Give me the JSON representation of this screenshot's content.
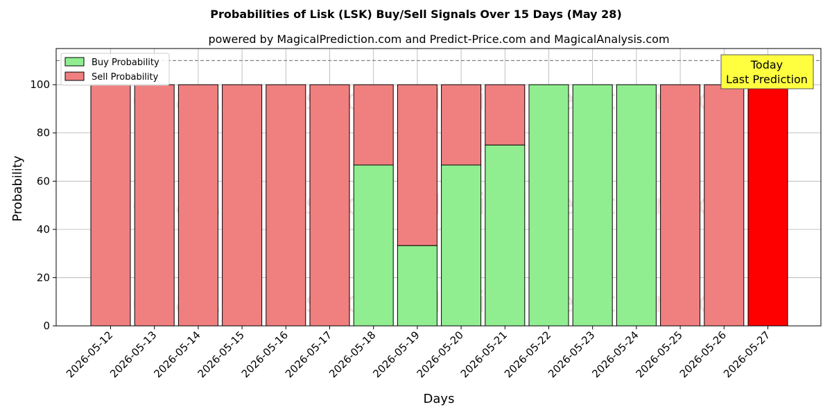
{
  "chart_data": {
    "type": "bar",
    "stacked": true,
    "title": "Probabilities of Lisk (LSK) Buy/Sell Signals Over 15 Days (May 28)",
    "subtitle": "powered by MagicalPrediction.com and Predict-Price.com and MagicalAnalysis.com",
    "xlabel": "Days",
    "ylabel": "Probability",
    "ylim": [
      0,
      115
    ],
    "yticks": [
      0,
      20,
      40,
      60,
      80,
      100
    ],
    "grid": true,
    "legend_position": "top-left",
    "categories": [
      "2026-05-12",
      "2026-05-13",
      "2026-05-14",
      "2026-05-15",
      "2026-05-16",
      "2026-05-17",
      "2026-05-18",
      "2026-05-19",
      "2026-05-20",
      "2026-05-21",
      "2026-05-22",
      "2026-05-23",
      "2026-05-24",
      "2026-05-25",
      "2026-05-26",
      "2026-05-27"
    ],
    "series": [
      {
        "name": "Buy Probability",
        "color": "#90ee90",
        "values": [
          0,
          0,
          0,
          0,
          0,
          0,
          66.7,
          33.3,
          66.7,
          75,
          100,
          100,
          100,
          0,
          0,
          0
        ]
      },
      {
        "name": "Sell Probability",
        "color": "#f08080",
        "values": [
          100,
          100,
          100,
          100,
          100,
          100,
          33.3,
          66.7,
          33.3,
          25,
          0,
          0,
          0,
          100,
          100,
          100
        ]
      }
    ],
    "highlight": {
      "index": 15,
      "color": "#ff0000"
    },
    "reference_line": {
      "y": 110,
      "style": "dashed",
      "color": "#808080"
    },
    "annotation": {
      "lines": [
        "Today",
        "Last Prediction"
      ],
      "background": "#ffff40"
    },
    "watermarks": [
      "MagicalAnalysis.com",
      "MagicalPrediction.com"
    ]
  }
}
